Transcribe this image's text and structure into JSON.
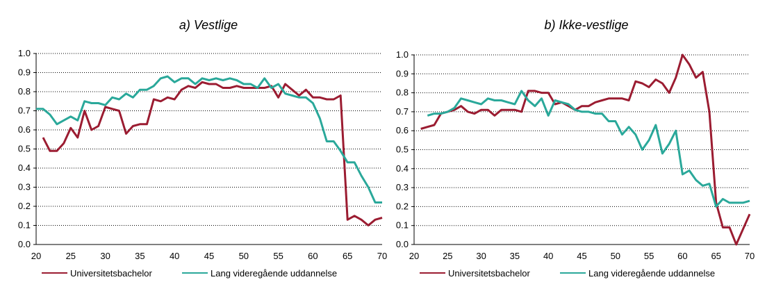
{
  "chart_data": [
    {
      "type": "line",
      "title": "a) Vestlige",
      "xlim": [
        20,
        70
      ],
      "ylim": [
        0,
        1
      ],
      "x_ticks": [
        "20",
        "25",
        "30",
        "35",
        "40",
        "45",
        "50",
        "55",
        "60",
        "65",
        "70"
      ],
      "y_ticks": [
        "0.0",
        "0.1",
        "0.2",
        "0.3",
        "0.4",
        "0.5",
        "0.6",
        "0.7",
        "0.8",
        "0.9",
        "1.0"
      ],
      "grid": "horizontal dotted",
      "legend": "bottom",
      "series": [
        {
          "name": "Universitetsbachelor",
          "color": "#9b1c31",
          "x": [
            21,
            22,
            23,
            24,
            25,
            26,
            27,
            28,
            29,
            30,
            31,
            32,
            33,
            34,
            35,
            36,
            37,
            38,
            39,
            40,
            41,
            42,
            43,
            44,
            45,
            46,
            47,
            48,
            49,
            50,
            51,
            52,
            53,
            54,
            55,
            56,
            57,
            58,
            59,
            60,
            61,
            62,
            63,
            64,
            65,
            66,
            67,
            68,
            69,
            70
          ],
          "y": [
            0.56,
            0.49,
            0.49,
            0.53,
            0.61,
            0.56,
            0.7,
            0.6,
            0.62,
            0.72,
            0.71,
            0.7,
            0.58,
            0.62,
            0.63,
            0.63,
            0.76,
            0.75,
            0.77,
            0.76,
            0.81,
            0.83,
            0.82,
            0.85,
            0.84,
            0.84,
            0.82,
            0.82,
            0.83,
            0.82,
            0.82,
            0.82,
            0.82,
            0.83,
            0.77,
            0.84,
            0.81,
            0.78,
            0.81,
            0.77,
            0.77,
            0.76,
            0.76,
            0.78,
            0.13,
            0.15,
            0.13,
            0.1,
            0.13,
            0.14
          ]
        },
        {
          "name": "Lang videregående uddannelse",
          "color": "#2aa89a",
          "x": [
            20,
            21,
            22,
            23,
            24,
            25,
            26,
            27,
            28,
            29,
            30,
            31,
            32,
            33,
            34,
            35,
            36,
            37,
            38,
            39,
            40,
            41,
            42,
            43,
            44,
            45,
            46,
            47,
            48,
            49,
            50,
            51,
            52,
            53,
            54,
            55,
            56,
            57,
            58,
            59,
            60,
            61,
            62,
            63,
            64,
            65,
            66,
            67,
            68,
            69,
            70
          ],
          "y": [
            0.71,
            0.71,
            0.68,
            0.63,
            0.65,
            0.67,
            0.65,
            0.75,
            0.74,
            0.74,
            0.73,
            0.77,
            0.76,
            0.79,
            0.77,
            0.81,
            0.81,
            0.83,
            0.87,
            0.88,
            0.85,
            0.87,
            0.87,
            0.84,
            0.87,
            0.86,
            0.87,
            0.86,
            0.87,
            0.86,
            0.84,
            0.84,
            0.82,
            0.87,
            0.82,
            0.84,
            0.79,
            0.78,
            0.77,
            0.77,
            0.74,
            0.66,
            0.54,
            0.54,
            0.49,
            0.43,
            0.43,
            0.36,
            0.3,
            0.22,
            0.22
          ]
        }
      ]
    },
    {
      "type": "line",
      "title": "b) Ikke-vestlige",
      "xlim": [
        20,
        70
      ],
      "ylim": [
        0,
        1
      ],
      "x_ticks": [
        "20",
        "25",
        "30",
        "35",
        "40",
        "45",
        "50",
        "55",
        "60",
        "65",
        "70"
      ],
      "y_ticks": [
        "0.0",
        "0.1",
        "0.2",
        "0.3",
        "0.4",
        "0.5",
        "0.6",
        "0.7",
        "0.8",
        "0.9",
        "1.0"
      ],
      "grid": "horizontal dotted",
      "legend": "bottom",
      "series": [
        {
          "name": "Universitetsbachelor",
          "color": "#9b1c31",
          "x": [
            21,
            22,
            23,
            24,
            25,
            26,
            27,
            28,
            29,
            30,
            31,
            32,
            33,
            34,
            35,
            36,
            37,
            38,
            39,
            40,
            41,
            42,
            43,
            44,
            45,
            46,
            47,
            48,
            49,
            50,
            51,
            52,
            53,
            54,
            55,
            56,
            57,
            58,
            59,
            60,
            61,
            62,
            63,
            64,
            65,
            66,
            67,
            68,
            69,
            70
          ],
          "y": [
            0.61,
            0.62,
            0.63,
            0.69,
            0.7,
            0.71,
            0.73,
            0.7,
            0.69,
            0.71,
            0.71,
            0.68,
            0.71,
            0.71,
            0.71,
            0.7,
            0.81,
            0.81,
            0.8,
            0.8,
            0.74,
            0.75,
            0.73,
            0.71,
            0.73,
            0.73,
            0.75,
            0.76,
            0.77,
            0.77,
            0.77,
            0.76,
            0.86,
            0.85,
            0.83,
            0.87,
            0.85,
            0.8,
            0.88,
            1.0,
            0.95,
            0.88,
            0.91,
            0.7,
            0.22,
            0.09,
            0.09,
            0.0,
            0.08,
            0.16
          ]
        },
        {
          "name": "Lang videregående uddannelse",
          "color": "#2aa89a",
          "x": [
            22,
            23,
            24,
            25,
            26,
            27,
            28,
            29,
            30,
            31,
            32,
            33,
            34,
            35,
            36,
            37,
            38,
            39,
            40,
            41,
            42,
            43,
            44,
            45,
            46,
            47,
            48,
            49,
            50,
            51,
            52,
            53,
            54,
            55,
            56,
            57,
            58,
            59,
            60,
            61,
            62,
            63,
            64,
            65,
            66,
            67,
            68,
            69,
            70
          ],
          "y": [
            0.68,
            0.69,
            0.69,
            0.7,
            0.72,
            0.77,
            0.76,
            0.75,
            0.74,
            0.77,
            0.76,
            0.76,
            0.75,
            0.74,
            0.81,
            0.76,
            0.73,
            0.77,
            0.68,
            0.76,
            0.75,
            0.74,
            0.71,
            0.7,
            0.7,
            0.69,
            0.69,
            0.65,
            0.65,
            0.58,
            0.62,
            0.58,
            0.5,
            0.55,
            0.63,
            0.48,
            0.53,
            0.6,
            0.37,
            0.39,
            0.34,
            0.31,
            0.32,
            0.2,
            0.24,
            0.22,
            0.22,
            0.22,
            0.23
          ]
        }
      ]
    }
  ]
}
